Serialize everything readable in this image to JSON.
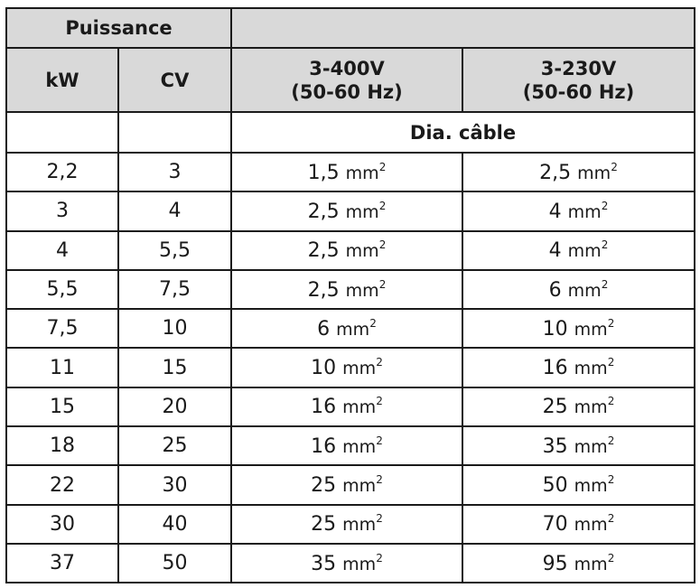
{
  "header": {
    "group_label": "Puissance",
    "col_kw": "kW",
    "col_cv": "CV",
    "col_400_line1": "3-400V",
    "col_400_line2": "(50-60 Hz)",
    "col_230_line1": "3-230V",
    "col_230_line2": "(50-60 Hz)",
    "subheader": "Dia. câble"
  },
  "unit": "mm",
  "unit_exponent": "2",
  "rows": [
    {
      "kw": "2,2",
      "cv": "3",
      "v400": "1,5",
      "v230": "2,5"
    },
    {
      "kw": "3",
      "cv": "4",
      "v400": "2,5",
      "v230": "4"
    },
    {
      "kw": "4",
      "cv": "5,5",
      "v400": "2,5",
      "v230": "4"
    },
    {
      "kw": "5,5",
      "cv": "7,5",
      "v400": "2,5",
      "v230": "6"
    },
    {
      "kw": "7,5",
      "cv": "10",
      "v400": "6",
      "v230": "10"
    },
    {
      "kw": "11",
      "cv": "15",
      "v400": "10",
      "v230": "16"
    },
    {
      "kw": "15",
      "cv": "20",
      "v400": "16",
      "v230": "25"
    },
    {
      "kw": "18",
      "cv": "25",
      "v400": "16",
      "v230": "35"
    },
    {
      "kw": "22",
      "cv": "30",
      "v400": "25",
      "v230": "50"
    },
    {
      "kw": "30",
      "cv": "40",
      "v400": "25",
      "v230": "70"
    },
    {
      "kw": "37",
      "cv": "50",
      "v400": "35",
      "v230": "95"
    }
  ],
  "colors": {
    "header_fill": "#d9d9d9",
    "border": "#1a1a1a",
    "text": "#1a1a1a"
  }
}
